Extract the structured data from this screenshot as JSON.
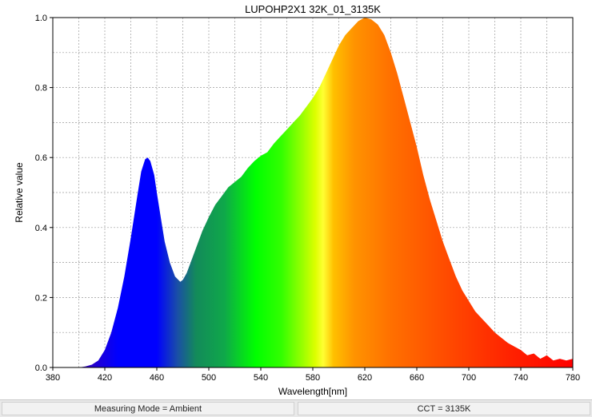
{
  "chart_data": {
    "type": "area",
    "title": "LUPOHP2X1 32K_01_3135K",
    "xlabel": "Wavelength[nm]",
    "ylabel": "Relative value",
    "xlim": [
      380,
      780
    ],
    "ylim": [
      0,
      1.0
    ],
    "x_ticks": [
      "380",
      "420",
      "460",
      "500",
      "540",
      "580",
      "620",
      "660",
      "700",
      "740",
      "780"
    ],
    "y_ticks": [
      "0.0",
      "0.2",
      "0.4",
      "0.6",
      "0.8",
      "1.0"
    ],
    "grid": true,
    "fill": "visible-spectrum gradient",
    "series": [
      {
        "x": [
          400,
          405,
          410,
          415,
          420,
          425,
          430,
          435,
          440,
          445,
          448,
          451,
          453,
          455,
          458,
          460,
          463,
          466,
          470,
          474,
          478,
          480,
          483,
          486,
          490,
          495,
          500,
          505,
          510,
          515,
          520,
          525,
          530,
          535,
          540,
          545,
          550,
          555,
          560,
          565,
          570,
          575,
          580,
          585,
          590,
          595,
          600,
          605,
          610,
          615,
          620,
          625,
          630,
          635,
          640,
          645,
          650,
          655,
          660,
          665,
          670,
          675,
          680,
          685,
          690,
          695,
          700,
          705,
          710,
          715,
          720,
          725,
          730,
          735,
          740,
          745,
          750,
          755,
          760,
          765,
          770,
          775,
          780
        ],
        "values": [
          0,
          0.003,
          0.008,
          0.02,
          0.05,
          0.1,
          0.17,
          0.26,
          0.37,
          0.49,
          0.56,
          0.595,
          0.6,
          0.59,
          0.55,
          0.5,
          0.43,
          0.36,
          0.3,
          0.26,
          0.245,
          0.25,
          0.27,
          0.3,
          0.34,
          0.39,
          0.43,
          0.465,
          0.49,
          0.515,
          0.53,
          0.545,
          0.57,
          0.59,
          0.605,
          0.615,
          0.64,
          0.66,
          0.68,
          0.7,
          0.72,
          0.745,
          0.77,
          0.8,
          0.84,
          0.88,
          0.92,
          0.95,
          0.97,
          0.99,
          1.0,
          0.995,
          0.98,
          0.95,
          0.9,
          0.84,
          0.77,
          0.7,
          0.63,
          0.55,
          0.48,
          0.42,
          0.36,
          0.31,
          0.26,
          0.22,
          0.19,
          0.16,
          0.14,
          0.12,
          0.1,
          0.085,
          0.07,
          0.06,
          0.05,
          0.035,
          0.04,
          0.025,
          0.035,
          0.02,
          0.025,
          0.02,
          0.025
        ]
      }
    ]
  },
  "status": {
    "left": "Measuring Mode = Ambient",
    "right": "CCT = 3135K"
  }
}
